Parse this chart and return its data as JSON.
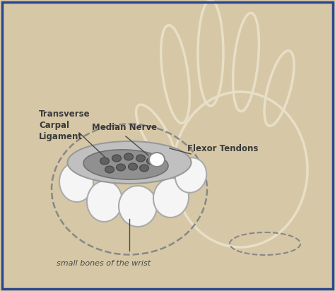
{
  "bg_color": "#d6c8a6",
  "border_color": "#2b4590",
  "hand_edge_color": "#e8dfc8",
  "dashed_color": "#888888",
  "bone_fill": "#f5f5f5",
  "bone_edge": "#aaaaaa",
  "ligament_fill": "#c0c0c0",
  "ligament_edge": "#999999",
  "canal_fill": "#909090",
  "canal_edge": "#707070",
  "tendon_fill": "#606060",
  "tendon_edge": "#444444",
  "nerve_fill": "#ffffff",
  "nerve_edge": "#888888",
  "label_color": "#4a4a4a",
  "label_bold_color": "#3a3a3a",
  "label_fontsize": 8.5,
  "labels": {
    "transverse": "Transverse\nCarpal\nLigament",
    "median": "Median Nerve",
    "flexor": "Flexor Tendons",
    "small_bones": "small bones of the wrist"
  }
}
